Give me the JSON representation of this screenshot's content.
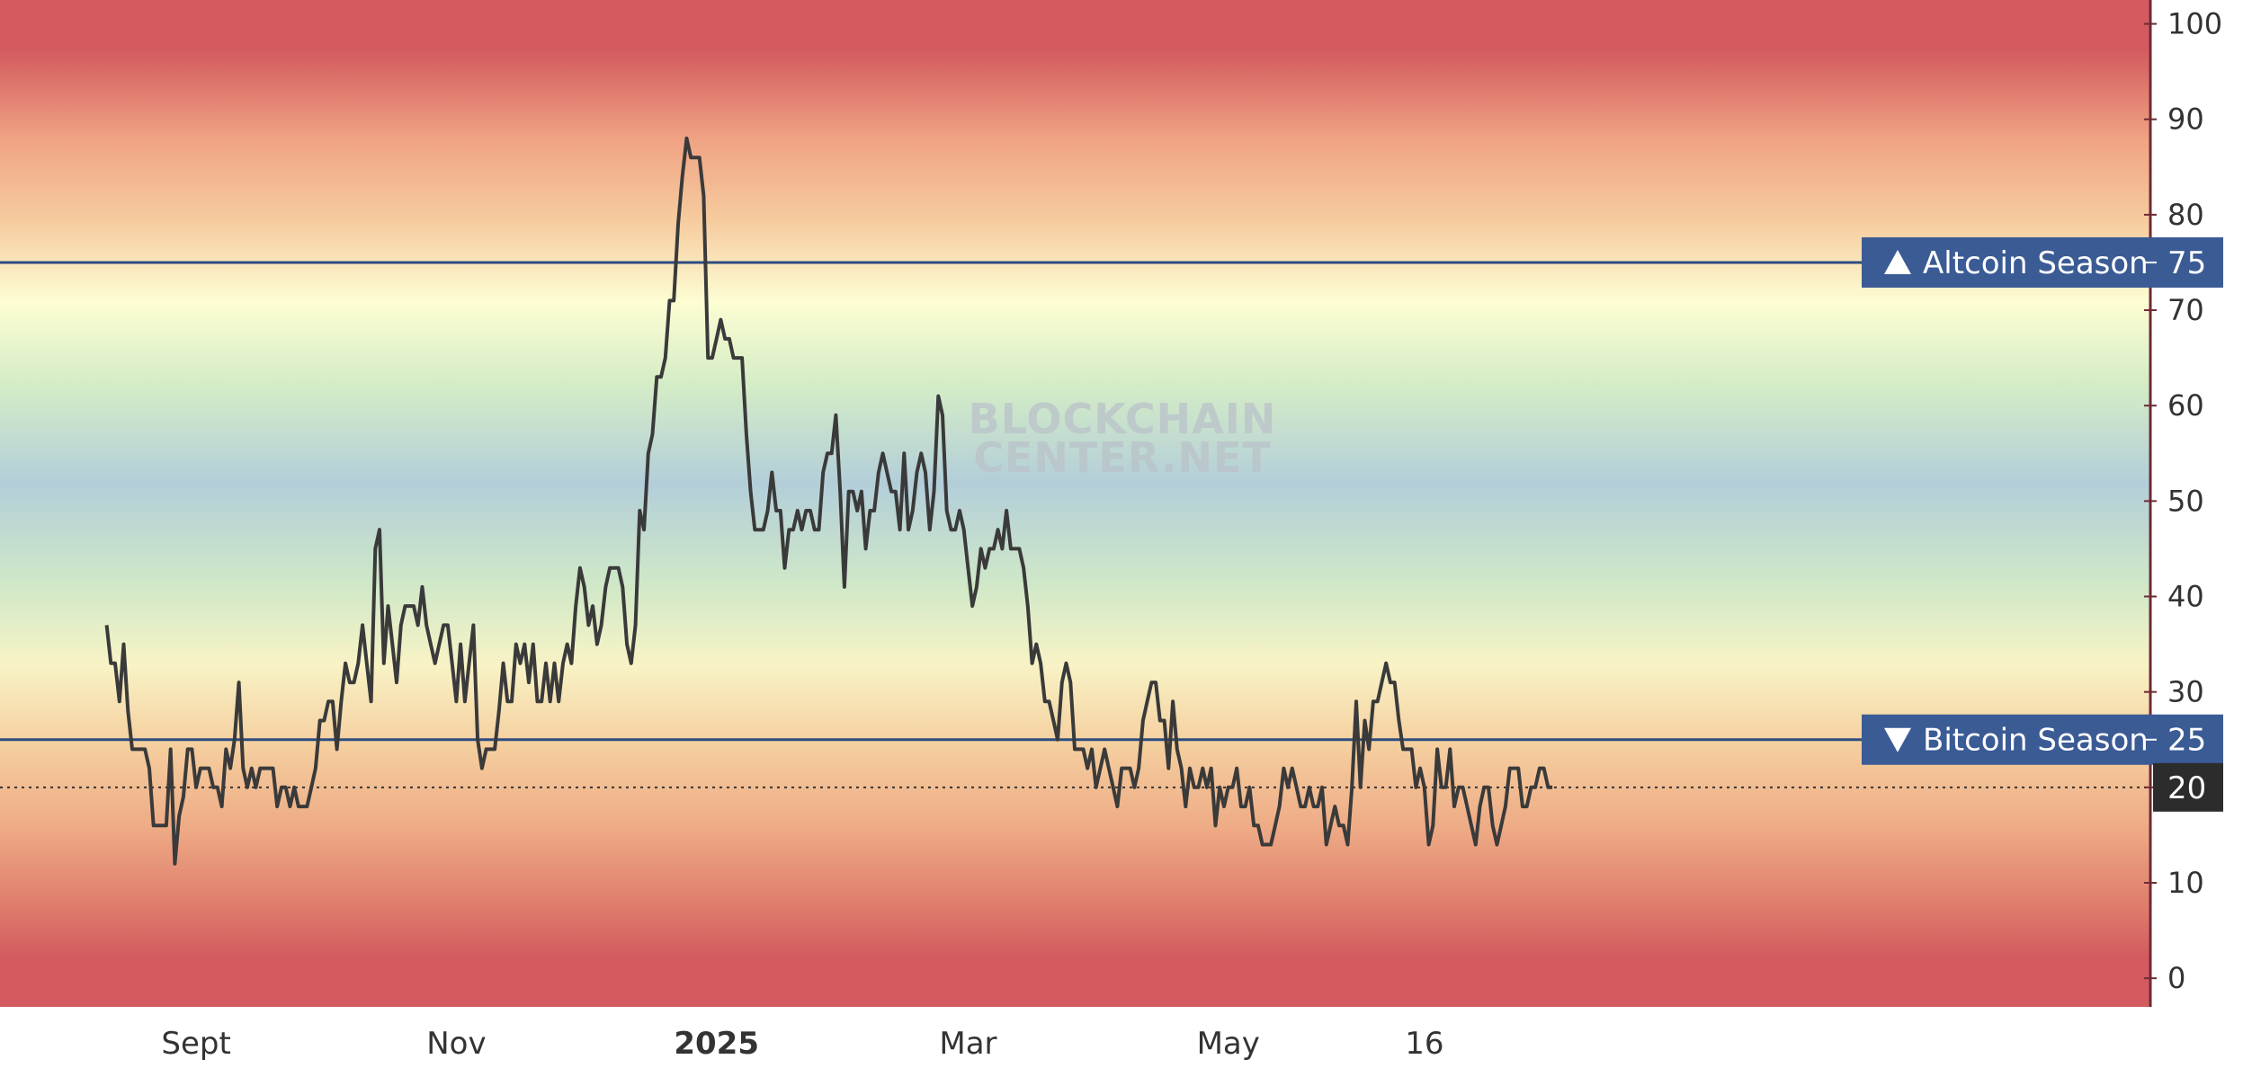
{
  "chart_data": {
    "type": "line",
    "watermark": [
      "BLOCKCHAIN",
      "CENTER.NET"
    ],
    "y_ticks": [
      0,
      10,
      20,
      30,
      40,
      50,
      60,
      70,
      80,
      90,
      100
    ],
    "ylim": [
      -3,
      102.5
    ],
    "x_ticks": [
      {
        "label": "Sept",
        "bold": false,
        "x": 21
      },
      {
        "label": "Nov",
        "bold": false,
        "x": 82
      },
      {
        "label": "2025",
        "bold": true,
        "x": 143
      },
      {
        "label": "Mar",
        "bold": false,
        "x": 202
      },
      {
        "label": "May",
        "bold": false,
        "x": 263
      },
      {
        "label": "16",
        "bold": false,
        "x": 309
      }
    ],
    "xlim": [
      -25,
      479
    ],
    "thresholds": [
      {
        "label": "Altcoin Season",
        "value": 75,
        "direction": "up",
        "value_label": "75"
      },
      {
        "label": "Bitcoin Season",
        "value": 25,
        "direction": "down",
        "value_label": "25"
      }
    ],
    "current_value": {
      "value": 20,
      "label": "20"
    },
    "series": [
      {
        "values": [
          37,
          33,
          33,
          29,
          35,
          28,
          24,
          24,
          24,
          24,
          22,
          16,
          16,
          16,
          16,
          24,
          12,
          17,
          19,
          24,
          24,
          20,
          22,
          22,
          22,
          20,
          20,
          18,
          24,
          22,
          25,
          31,
          22,
          20,
          22,
          20,
          22,
          22,
          22,
          22,
          18,
          20,
          20,
          18,
          20,
          18,
          18,
          18,
          20,
          22,
          27,
          27,
          29,
          29,
          24,
          29,
          33,
          31,
          31,
          33,
          37,
          33,
          29,
          45,
          47,
          33,
          39,
          35,
          31,
          37,
          39,
          39,
          39,
          37,
          41,
          37,
          35,
          33,
          35,
          37,
          37,
          33,
          29,
          35,
          29,
          33,
          37,
          25,
          22,
          24,
          24,
          24,
          28,
          33,
          29,
          29,
          35,
          33,
          35,
          31,
          35,
          29,
          29,
          33,
          29,
          33,
          29,
          33,
          35,
          33,
          39,
          43,
          41,
          37,
          39,
          35,
          37,
          41,
          43,
          43,
          43,
          41,
          35,
          33,
          37,
          49,
          47,
          55,
          57,
          63,
          63,
          65,
          71,
          71,
          79,
          84,
          88,
          86,
          86,
          86,
          82,
          65,
          65,
          67,
          69,
          67,
          67,
          65,
          65,
          65,
          57,
          51,
          47,
          47,
          47,
          49,
          53,
          49,
          49,
          43,
          47,
          47,
          49,
          47,
          49,
          49,
          47,
          47,
          53,
          55,
          55,
          59,
          51,
          41,
          51,
          51,
          49,
          51,
          45,
          49,
          49,
          53,
          55,
          53,
          51,
          51,
          47,
          55,
          47,
          49,
          53,
          55,
          53,
          47,
          51,
          61,
          59,
          49,
          47,
          47,
          49,
          47,
          43,
          39,
          41,
          45,
          43,
          45,
          45,
          47,
          45,
          49,
          45,
          45,
          45,
          43,
          39,
          33,
          35,
          33,
          29,
          29,
          27,
          25,
          31,
          33,
          31,
          24,
          24,
          24,
          22,
          24,
          20,
          22,
          24,
          22,
          20,
          18,
          22,
          22,
          22,
          20,
          22,
          27,
          29,
          31,
          31,
          27,
          27,
          22,
          29,
          24,
          22,
          18,
          22,
          20,
          20,
          22,
          20,
          22,
          16,
          20,
          18,
          20,
          20,
          22,
          18,
          18,
          20,
          16,
          16,
          14,
          14,
          14,
          16,
          18,
          22,
          20,
          22,
          20,
          18,
          18,
          20,
          18,
          18,
          20,
          14,
          16,
          18,
          16,
          16,
          14,
          20,
          29,
          20,
          27,
          24,
          29,
          29,
          31,
          33,
          31,
          31,
          27,
          24,
          24,
          24,
          20,
          22,
          20,
          14,
          16,
          24,
          20,
          20,
          24,
          18,
          20,
          20,
          18,
          16,
          14,
          18,
          20,
          20,
          16,
          14,
          16,
          18,
          22,
          22,
          22,
          18,
          18,
          20,
          20,
          22,
          22,
          20,
          20
        ]
      }
    ]
  },
  "colors": {
    "line": "#3a3a3a",
    "threshold": "#2d4d80",
    "badge": "#3b5b95",
    "current_badge": "#2c2c2c",
    "axis": "#6d2b35",
    "gradient": {
      "red": "#d35b5f",
      "peach": "#f4c79c",
      "cream": "#fdfdd3",
      "green": "#cde8c4",
      "blue": "#b3ced9"
    }
  }
}
